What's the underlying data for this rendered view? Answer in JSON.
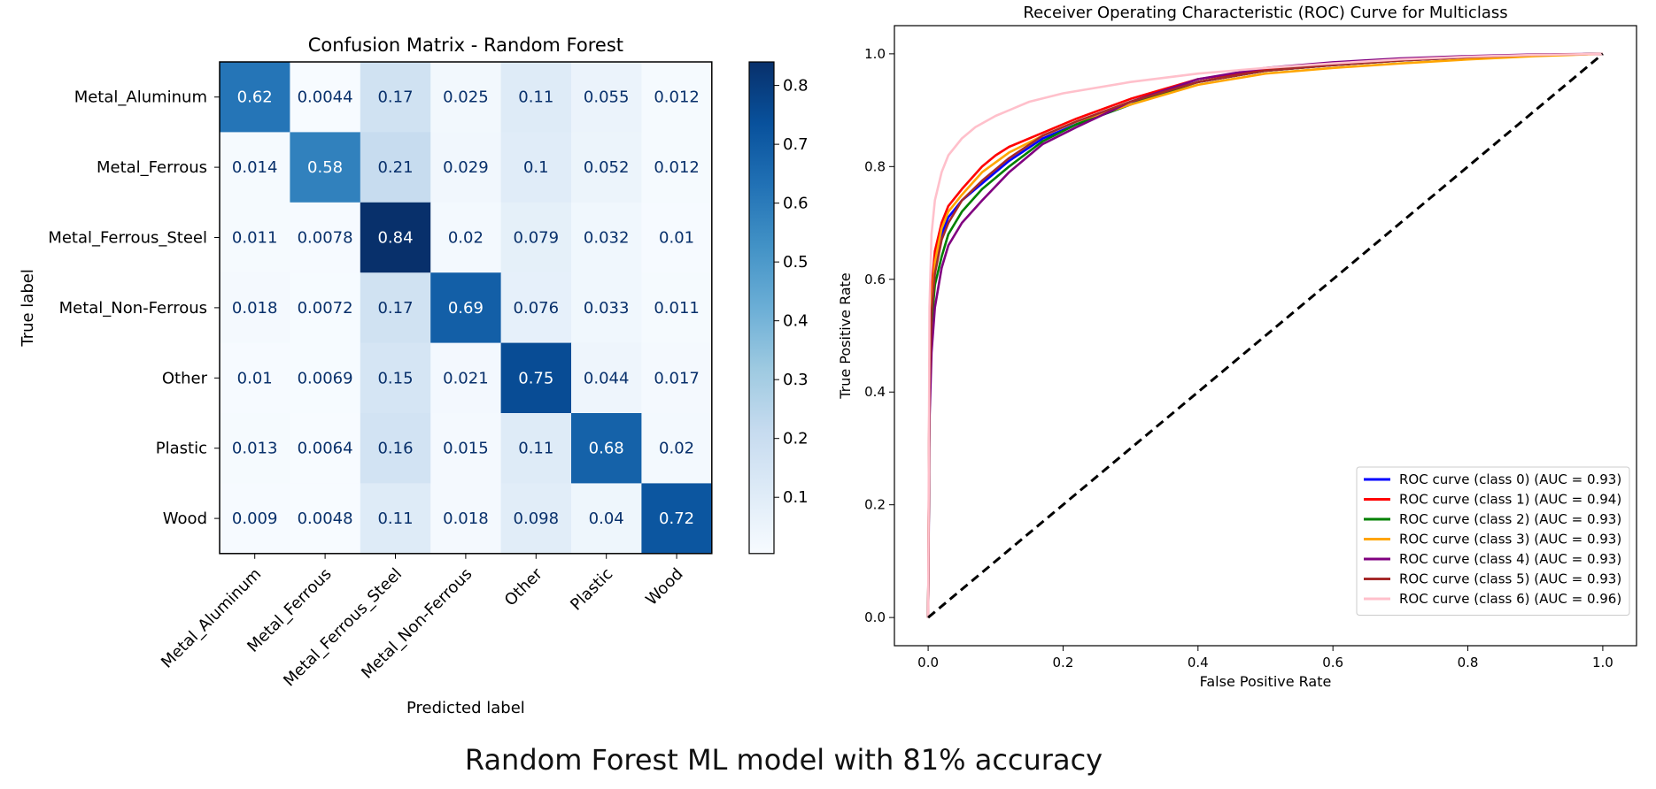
{
  "caption": "Random Forest ML model with 81% accuracy",
  "chart_data": [
    {
      "type": "heatmap",
      "title": "Confusion Matrix - Random Forest",
      "xlabel": "Predicted label",
      "ylabel": "True label",
      "row_labels": [
        "Metal_Aluminum",
        "Metal_Ferrous",
        "Metal_Ferrous_Steel",
        "Metal_Non-Ferrous",
        "Other",
        "Plastic",
        "Wood"
      ],
      "col_labels": [
        "Metal_Aluminum",
        "Metal_Ferrous",
        "Metal_Ferrous_Steel",
        "Metal_Non-Ferrous",
        "Other",
        "Plastic",
        "Wood"
      ],
      "matrix": [
        [
          "0.62",
          "0.0044",
          "0.17",
          "0.025",
          "0.11",
          "0.055",
          "0.012"
        ],
        [
          "0.014",
          "0.58",
          "0.21",
          "0.029",
          "0.1",
          "0.052",
          "0.012"
        ],
        [
          "0.011",
          "0.0078",
          "0.84",
          "0.02",
          "0.079",
          "0.032",
          "0.01"
        ],
        [
          "0.018",
          "0.0072",
          "0.17",
          "0.69",
          "0.076",
          "0.033",
          "0.011"
        ],
        [
          "0.01",
          "0.0069",
          "0.15",
          "0.021",
          "0.75",
          "0.044",
          "0.017"
        ],
        [
          "0.013",
          "0.0064",
          "0.16",
          "0.015",
          "0.11",
          "0.68",
          "0.02"
        ],
        [
          "0.009",
          "0.0048",
          "0.11",
          "0.018",
          "0.098",
          "0.04",
          "0.72"
        ]
      ],
      "colormap": "Blues",
      "colorbar_range": [
        0.0044,
        0.84
      ],
      "colorbar_ticks": [
        "0.1",
        "0.2",
        "0.3",
        "0.4",
        "0.5",
        "0.6",
        "0.7",
        "0.8"
      ]
    },
    {
      "type": "line",
      "title": "Receiver Operating Characteristic (ROC) Curve for Multiclass",
      "xlabel": "False Positive Rate",
      "ylabel": "True Positive Rate",
      "xlim": [
        -0.05,
        1.05
      ],
      "ylim": [
        -0.05,
        1.05
      ],
      "xticks": [
        "0.0",
        "0.2",
        "0.4",
        "0.6",
        "0.8",
        "1.0"
      ],
      "yticks": [
        "0.0",
        "0.2",
        "0.4",
        "0.6",
        "0.8",
        "1.0"
      ],
      "legend_position": "lower right",
      "series": [
        {
          "name": "ROC curve (class 0) (AUC = 0.93)",
          "color": "#0000ff",
          "x": [
            0,
            0.002,
            0.005,
            0.01,
            0.02,
            0.03,
            0.05,
            0.08,
            0.12,
            0.17,
            0.22,
            0.3,
            0.34,
            0.4,
            0.5,
            0.6,
            0.7,
            0.8,
            0.9,
            1.0
          ],
          "y": [
            0,
            0.42,
            0.55,
            0.62,
            0.68,
            0.71,
            0.74,
            0.77,
            0.81,
            0.85,
            0.875,
            0.91,
            0.93,
            0.95,
            0.97,
            0.98,
            0.988,
            0.994,
            0.998,
            1.0
          ]
        },
        {
          "name": "ROC curve (class 1) (AUC = 0.94)",
          "color": "#ff0000",
          "x": [
            0,
            0.002,
            0.005,
            0.01,
            0.02,
            0.03,
            0.05,
            0.08,
            0.1,
            0.12,
            0.17,
            0.22,
            0.3,
            0.4,
            0.5,
            0.6,
            0.7,
            0.8,
            0.9,
            1.0
          ],
          "y": [
            0,
            0.45,
            0.58,
            0.65,
            0.7,
            0.73,
            0.76,
            0.8,
            0.82,
            0.835,
            0.86,
            0.885,
            0.92,
            0.955,
            0.972,
            0.982,
            0.99,
            0.995,
            0.998,
            1.0
          ]
        },
        {
          "name": "ROC curve (class 2) (AUC = 0.93)",
          "color": "#008000",
          "x": [
            0,
            0.002,
            0.005,
            0.01,
            0.02,
            0.03,
            0.05,
            0.08,
            0.12,
            0.17,
            0.22,
            0.3,
            0.4,
            0.5,
            0.6,
            0.7,
            0.8,
            0.9,
            1.0
          ],
          "y": [
            0,
            0.4,
            0.52,
            0.59,
            0.64,
            0.68,
            0.72,
            0.76,
            0.8,
            0.845,
            0.875,
            0.91,
            0.95,
            0.97,
            0.98,
            0.988,
            0.994,
            0.998,
            1.0
          ]
        },
        {
          "name": "ROC curve (class 3) (AUC = 0.93)",
          "color": "#ffa500",
          "x": [
            0,
            0.002,
            0.005,
            0.01,
            0.02,
            0.03,
            0.05,
            0.08,
            0.12,
            0.17,
            0.22,
            0.3,
            0.4,
            0.5,
            0.6,
            0.7,
            0.8,
            0.9,
            1.0
          ],
          "y": [
            0,
            0.42,
            0.55,
            0.63,
            0.69,
            0.72,
            0.75,
            0.79,
            0.825,
            0.855,
            0.88,
            0.91,
            0.945,
            0.965,
            0.975,
            0.983,
            0.99,
            0.996,
            1.0
          ]
        },
        {
          "name": "ROC curve (class 4) (AUC = 0.93)",
          "color": "#800080",
          "x": [
            0,
            0.002,
            0.005,
            0.01,
            0.02,
            0.03,
            0.05,
            0.08,
            0.12,
            0.17,
            0.22,
            0.3,
            0.4,
            0.5,
            0.6,
            0.7,
            0.8,
            0.9,
            1.0
          ],
          "y": [
            0,
            0.35,
            0.47,
            0.55,
            0.62,
            0.66,
            0.7,
            0.74,
            0.79,
            0.84,
            0.87,
            0.915,
            0.955,
            0.975,
            0.985,
            0.992,
            0.996,
            0.999,
            1.0
          ]
        },
        {
          "name": "ROC curve (class 5) (AUC = 0.93)",
          "color": "#a52a2a",
          "x": [
            0,
            0.002,
            0.005,
            0.01,
            0.02,
            0.03,
            0.05,
            0.08,
            0.12,
            0.17,
            0.22,
            0.3,
            0.4,
            0.5,
            0.6,
            0.7,
            0.8,
            0.9,
            1.0
          ],
          "y": [
            0,
            0.41,
            0.54,
            0.61,
            0.67,
            0.7,
            0.74,
            0.775,
            0.815,
            0.855,
            0.88,
            0.915,
            0.95,
            0.97,
            0.98,
            0.988,
            0.994,
            0.998,
            1.0
          ]
        },
        {
          "name": "ROC curve (class 6) (AUC = 0.96)",
          "color": "#ffc0cb",
          "x": [
            0,
            0.002,
            0.005,
            0.01,
            0.02,
            0.03,
            0.05,
            0.07,
            0.1,
            0.15,
            0.2,
            0.3,
            0.4,
            0.5,
            0.6,
            0.7,
            0.8,
            0.9,
            1.0
          ],
          "y": [
            0,
            0.55,
            0.68,
            0.74,
            0.79,
            0.82,
            0.85,
            0.87,
            0.89,
            0.915,
            0.93,
            0.95,
            0.965,
            0.975,
            0.983,
            0.99,
            0.995,
            0.998,
            1.0
          ]
        },
        {
          "name": "",
          "color": "#000000",
          "dashed": true,
          "x": [
            0,
            1
          ],
          "y": [
            0,
            1
          ]
        }
      ]
    }
  ]
}
